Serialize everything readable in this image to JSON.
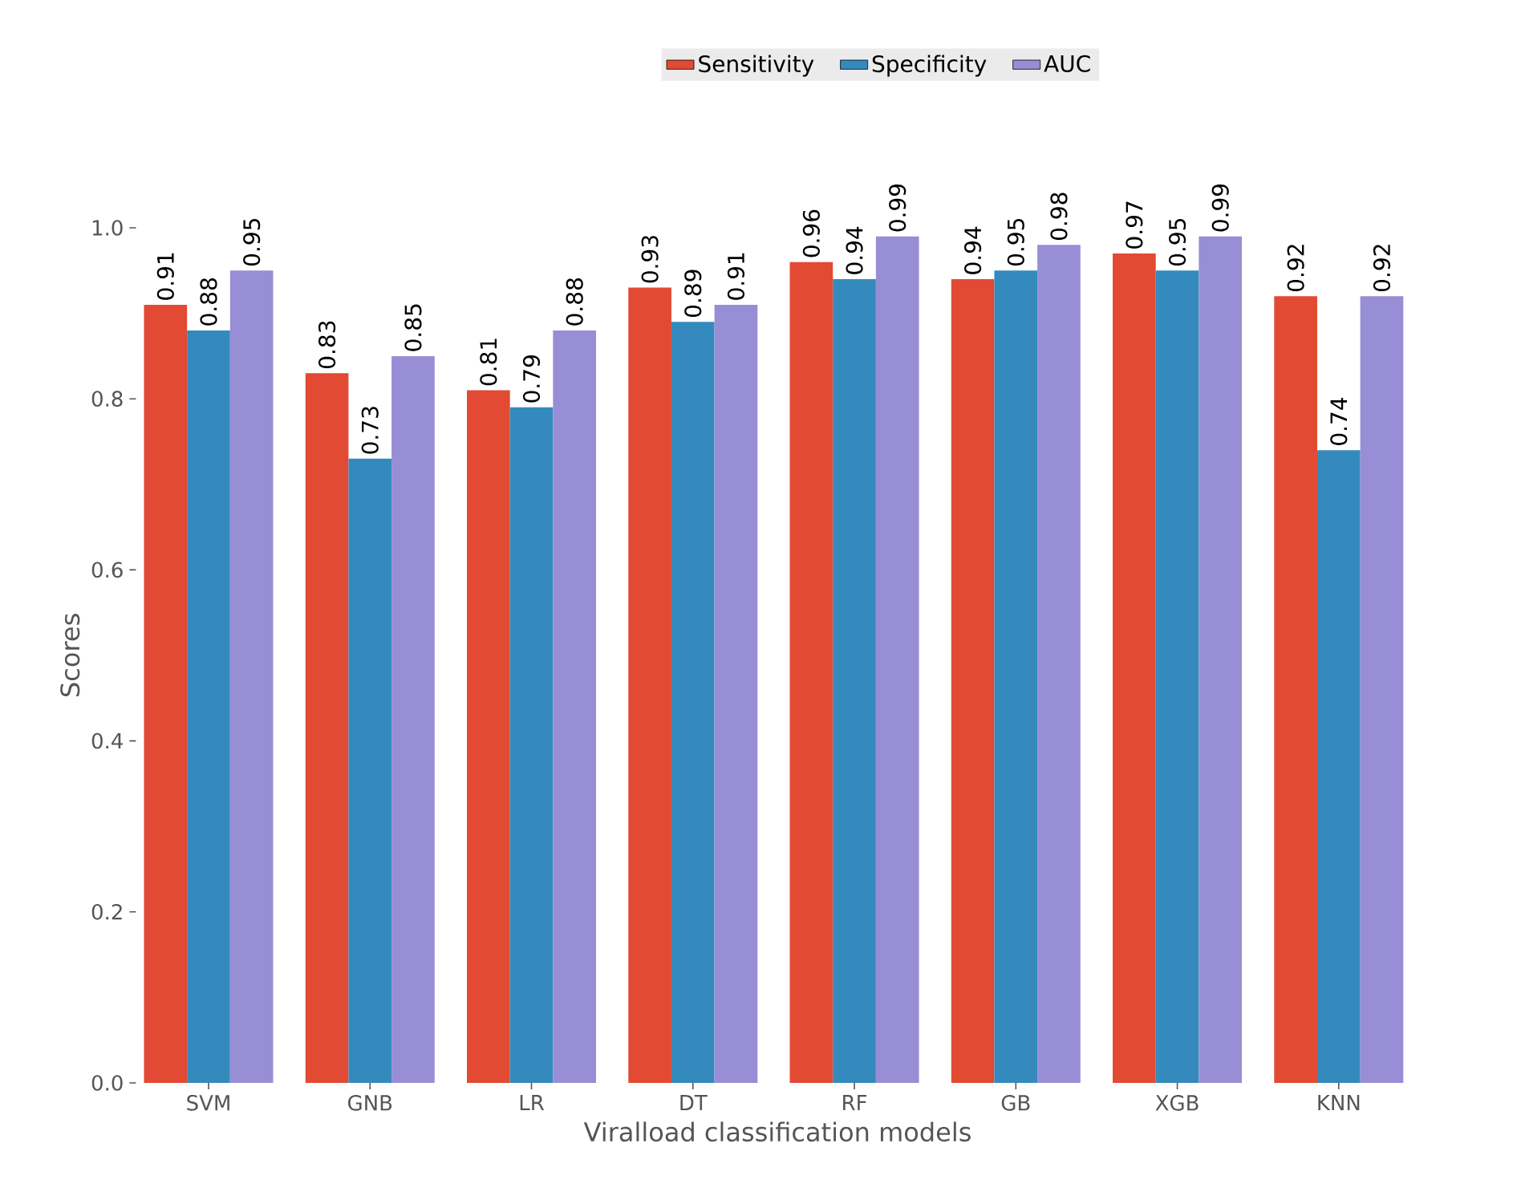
{
  "chart_data": {
    "type": "bar",
    "xlabel": "Viralload classification models",
    "ylabel": "Scores",
    "categories": [
      "SVM",
      "GNB",
      "LR",
      "DT",
      "RF",
      "GB",
      "XGB",
      "KNN"
    ],
    "series": [
      {
        "name": "Sensitivity",
        "color": "#e24a33",
        "values": [
          0.91,
          0.83,
          0.81,
          0.93,
          0.96,
          0.94,
          0.97,
          0.92
        ]
      },
      {
        "name": "Specificity",
        "color": "#348abd",
        "values": [
          0.88,
          0.73,
          0.79,
          0.89,
          0.94,
          0.95,
          0.95,
          0.74
        ]
      },
      {
        "name": "AUC",
        "color": "#988ed5",
        "values": [
          0.95,
          0.85,
          0.88,
          0.91,
          0.99,
          0.98,
          0.99,
          0.92
        ]
      }
    ],
    "ylim": [
      0,
      1.0
    ],
    "yticks": [
      {
        "value": 0,
        "label": "0.0"
      },
      0.2,
      0.4,
      0.6,
      0.8,
      {
        "value": 1,
        "label": "1.0"
      }
    ],
    "data_labels": true,
    "legend": "top",
    "grid": false
  }
}
